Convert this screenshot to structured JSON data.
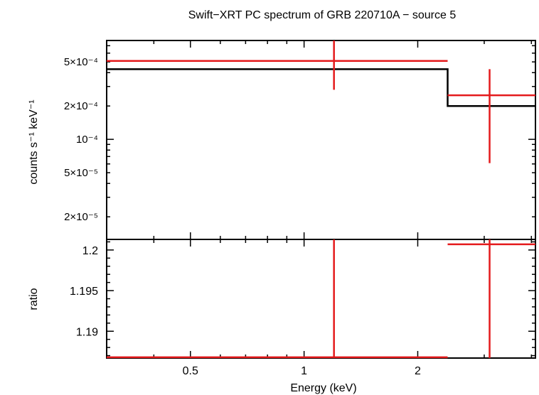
{
  "title": "Swift−XRT PC spectrum of GRB 220710A − source 5",
  "colors": {
    "data": "#e41a1c",
    "model": "#000000",
    "frame": "#000000"
  },
  "chart_data": [
    {
      "panel": "spectrum",
      "type": "line",
      "ylabel": "counts s⁻¹ keV⁻¹",
      "xscale": "log",
      "yscale": "log",
      "xlim": [
        0.3,
        4.1
      ],
      "ylim": [
        1.25e-05,
        0.00078
      ],
      "yticks": [
        {
          "value": 0.0005,
          "label": "5×10⁻⁴"
        },
        {
          "value": 0.0002,
          "label": "2×10⁻⁴"
        },
        {
          "value": 0.0001,
          "label": "10⁻⁴"
        },
        {
          "value": 5e-05,
          "label": "5×10⁻⁵"
        },
        {
          "value": 2e-05,
          "label": "2×10⁻⁵"
        }
      ],
      "series": [
        {
          "kind": "data",
          "points": [
            {
              "x": 1.2,
              "xlo": 0.3,
              "xhi": 2.4,
              "y": 0.00051,
              "ylo": 0.00028,
              "yhi": 0.00078
            },
            {
              "x": 3.1,
              "xlo": 2.4,
              "xhi": 4.1,
              "y": 0.00025,
              "ylo": 6.1e-05,
              "yhi": 0.00043
            }
          ]
        },
        {
          "kind": "model",
          "steps": [
            {
              "xlo": 0.3,
              "xhi": 2.4,
              "y": 0.00043
            },
            {
              "xlo": 2.4,
              "xhi": 4.1,
              "y": 0.0002
            }
          ]
        }
      ]
    },
    {
      "panel": "ratio",
      "type": "line",
      "xlabel": "Energy (keV)",
      "ylabel": "ratio",
      "xscale": "log",
      "xlim": [
        0.3,
        4.1
      ],
      "ylim": [
        1.1867,
        1.2013
      ],
      "xticks": [
        {
          "value": 0.5,
          "label": "0.5"
        },
        {
          "value": 1,
          "label": "1"
        },
        {
          "value": 2,
          "label": "2"
        }
      ],
      "yticks": [
        {
          "value": 1.2,
          "label": "1.2"
        },
        {
          "value": 1.195,
          "label": "1.195"
        },
        {
          "value": 1.19,
          "label": "1.19"
        }
      ],
      "series": [
        {
          "kind": "data",
          "points": [
            {
              "x": 1.2,
              "xlo": 0.3,
              "xhi": 2.4,
              "y": 1.1868,
              "ylo": 1.18,
              "yhi": 1.22
            },
            {
              "x": 3.1,
              "xlo": 2.4,
              "xhi": 4.1,
              "y": 1.2007,
              "ylo": 1.18,
              "yhi": 1.22
            }
          ]
        }
      ]
    }
  ]
}
